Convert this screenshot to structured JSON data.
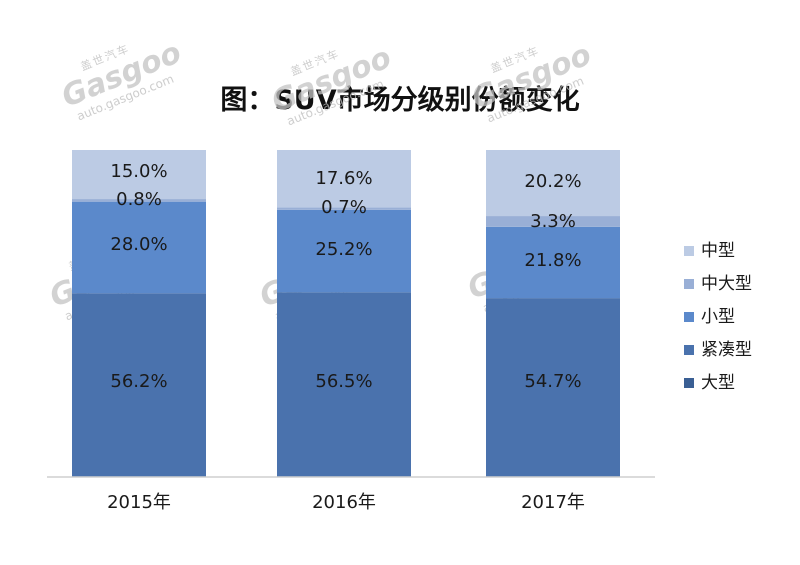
{
  "chart_data": {
    "type": "bar",
    "stacked": true,
    "normalized": true,
    "title": "图：SUV市场分级别份额变化",
    "categories": [
      "2015年",
      "2016年",
      "2017年"
    ],
    "series": [
      {
        "name": "大型",
        "color": "#3a5f94",
        "values": [
          0,
          0,
          0
        ],
        "labels": [
          "",
          "",
          ""
        ]
      },
      {
        "name": "紧凑型",
        "color": "#4a72ad",
        "values": [
          56.2,
          56.5,
          54.7
        ],
        "labels": [
          "56.2%",
          "56.5%",
          "54.7%"
        ]
      },
      {
        "name": "小型",
        "color": "#5b89cb",
        "values": [
          28.0,
          25.2,
          21.8
        ],
        "labels": [
          "28.0%",
          "25.2%",
          "21.8%"
        ]
      },
      {
        "name": "中大型",
        "color": "#99afd6",
        "values": [
          0.8,
          0.7,
          3.3
        ],
        "labels": [
          "0.8%",
          "0.7%",
          "3.3%"
        ]
      },
      {
        "name": "中型",
        "color": "#bccbe4",
        "values": [
          15.0,
          17.6,
          20.2
        ],
        "labels": [
          "15.0%",
          "17.6%",
          "20.2%"
        ]
      }
    ],
    "legend": {
      "position": "right",
      "order": [
        "中型",
        "中大型",
        "小型",
        "紧凑型",
        "大型"
      ]
    },
    "grid": false,
    "ylim": [
      0,
      100
    ]
  },
  "watermark": {
    "cn": "盖世汽车",
    "logo": "Gasgoo",
    "url": "auto.gasgoo.com"
  }
}
